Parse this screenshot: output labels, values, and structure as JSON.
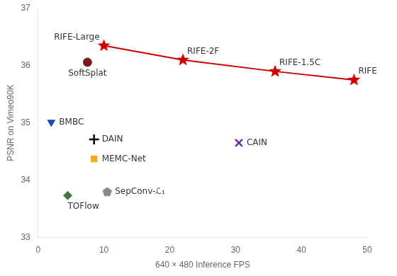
{
  "chart_data": {
    "type": "scatter",
    "xlabel": "640 × 480 Inference FPS",
    "ylabel": "PSNR on Vimeo90K",
    "xlim": [
      0,
      50
    ],
    "ylim": [
      33,
      37
    ],
    "xticks": [
      0,
      10,
      20,
      30,
      40,
      50
    ],
    "yticks": [
      33,
      34,
      35,
      36,
      37
    ],
    "grid": false,
    "series": [
      {
        "type": "line",
        "marker": "star",
        "color": "#cc0000",
        "x": [
          10,
          22,
          36,
          48
        ],
        "values": [
          36.35,
          36.1,
          35.9,
          35.75
        ],
        "labels": [
          "RIFE-Large",
          "RIFE-2F",
          "RIFE-1.5C",
          "RIFE"
        ]
      },
      {
        "type": "scatter",
        "marker": "circle",
        "color": "#7b1c1c",
        "x": [
          7.5
        ],
        "values": [
          36.06
        ],
        "labels": [
          "SoftSplat"
        ]
      },
      {
        "type": "scatter",
        "marker": "triangle_down",
        "color": "#1a4db5",
        "x": [
          2.0
        ],
        "values": [
          35.01
        ],
        "labels": [
          "BMBC"
        ]
      },
      {
        "type": "scatter",
        "marker": "plus",
        "color": "#000000",
        "x": [
          8.5
        ],
        "values": [
          34.71
        ],
        "labels": [
          "DAIN"
        ]
      },
      {
        "type": "scatter",
        "marker": "square",
        "color": "#f5a623",
        "x": [
          8.5
        ],
        "values": [
          34.37
        ],
        "labels": [
          "MEMC-Net"
        ]
      },
      {
        "type": "scatter",
        "marker": "x",
        "color": "#7030a0",
        "x": [
          30.5
        ],
        "values": [
          34.65
        ],
        "labels": [
          "CAIN"
        ]
      },
      {
        "type": "scatter",
        "marker": "pentagon",
        "color": "#888888",
        "x": [
          10.5
        ],
        "values": [
          33.79
        ],
        "labels": [
          "SepConv-ℒ₁"
        ]
      },
      {
        "type": "scatter",
        "marker": "diamond",
        "color": "#3a7a3a",
        "x": [
          4.5
        ],
        "values": [
          33.73
        ],
        "labels": [
          "TOFlow"
        ]
      }
    ]
  }
}
